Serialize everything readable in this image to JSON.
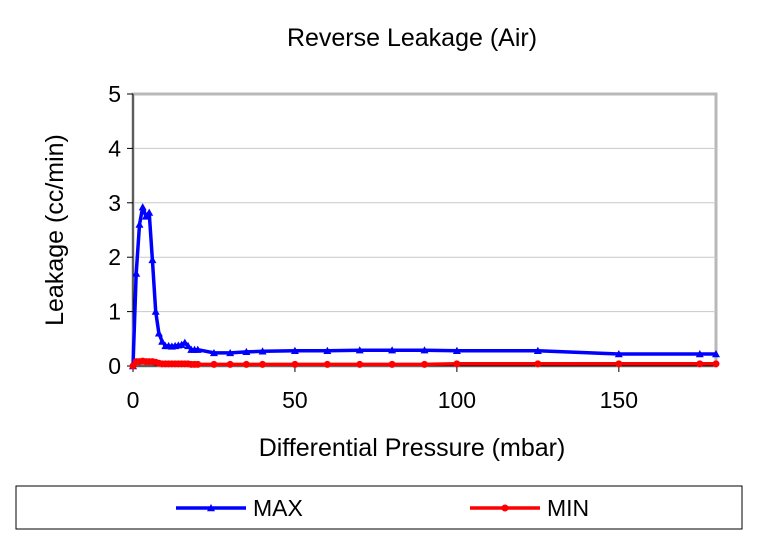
{
  "chart_data": {
    "type": "line",
    "title": "Reverse Leakage (Air)",
    "xlabel": "Differential Pressure (mbar)",
    "ylabel": "Leakage (cc/min)",
    "xlim": [
      0,
      180
    ],
    "ylim": [
      0,
      5
    ],
    "x_ticks": [
      "0",
      "50",
      "100",
      "150"
    ],
    "y_ticks": [
      "0",
      "1",
      "2",
      "3",
      "4",
      "5"
    ],
    "grid": "horizontal",
    "legend_position": "bottom",
    "series": [
      {
        "name": "MAX",
        "color": "#0000ff",
        "marker": "triangle",
        "x": [
          0,
          1,
          2,
          3,
          4,
          5,
          6,
          7,
          8,
          9,
          10,
          11,
          12,
          13,
          14,
          15,
          16,
          17,
          18,
          19,
          20,
          25,
          30,
          35,
          40,
          50,
          60,
          70,
          80,
          90,
          100,
          125,
          150,
          175,
          180
        ],
        "y": [
          0.0,
          1.7,
          2.6,
          2.92,
          2.75,
          2.82,
          1.95,
          1.0,
          0.6,
          0.45,
          0.37,
          0.37,
          0.36,
          0.37,
          0.38,
          0.39,
          0.43,
          0.37,
          0.3,
          0.3,
          0.3,
          0.24,
          0.24,
          0.26,
          0.27,
          0.28,
          0.28,
          0.29,
          0.29,
          0.29,
          0.28,
          0.28,
          0.22,
          0.22,
          0.22
        ]
      },
      {
        "name": "MIN",
        "color": "#ff0000",
        "marker": "circle",
        "x": [
          0,
          1,
          2,
          3,
          4,
          5,
          6,
          7,
          8,
          9,
          10,
          11,
          12,
          13,
          14,
          15,
          16,
          17,
          18,
          19,
          20,
          25,
          30,
          35,
          40,
          50,
          60,
          70,
          80,
          90,
          100,
          125,
          150,
          175,
          180
        ],
        "y": [
          0.0,
          0.08,
          0.08,
          0.09,
          0.08,
          0.08,
          0.08,
          0.07,
          0.05,
          0.04,
          0.04,
          0.04,
          0.04,
          0.04,
          0.04,
          0.04,
          0.04,
          0.04,
          0.03,
          0.03,
          0.03,
          0.03,
          0.03,
          0.03,
          0.03,
          0.03,
          0.03,
          0.03,
          0.03,
          0.03,
          0.04,
          0.04,
          0.04,
          0.04,
          0.04
        ]
      }
    ]
  }
}
